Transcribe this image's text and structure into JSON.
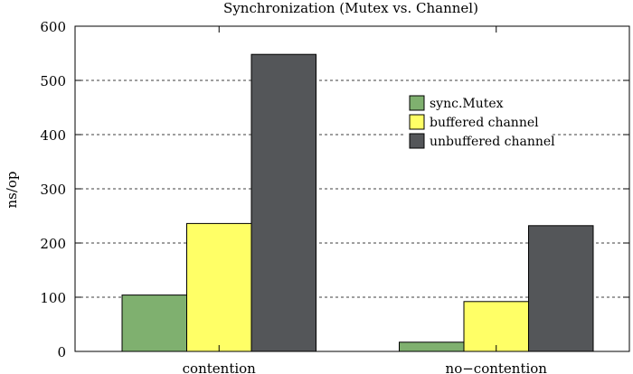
{
  "chart_data": {
    "type": "bar",
    "title": "Synchronization (Mutex vs. Channel)",
    "xlabel": "",
    "ylabel": "ns/op",
    "ylim": [
      0,
      600
    ],
    "yticks": [
      0,
      100,
      200,
      300,
      400,
      500,
      600
    ],
    "grid": "horizontal-dashed",
    "legend_position": "top-right",
    "categories": [
      "contention",
      "no−contention"
    ],
    "series": [
      {
        "name": "sync.Mutex",
        "color": "#7fb06f",
        "values": [
          104,
          17
        ]
      },
      {
        "name": "buffered channel",
        "color": "#ffff66",
        "values": [
          236,
          92
        ]
      },
      {
        "name": "unbuffered channel",
        "color": "#545659",
        "values": [
          548,
          232
        ]
      }
    ]
  }
}
